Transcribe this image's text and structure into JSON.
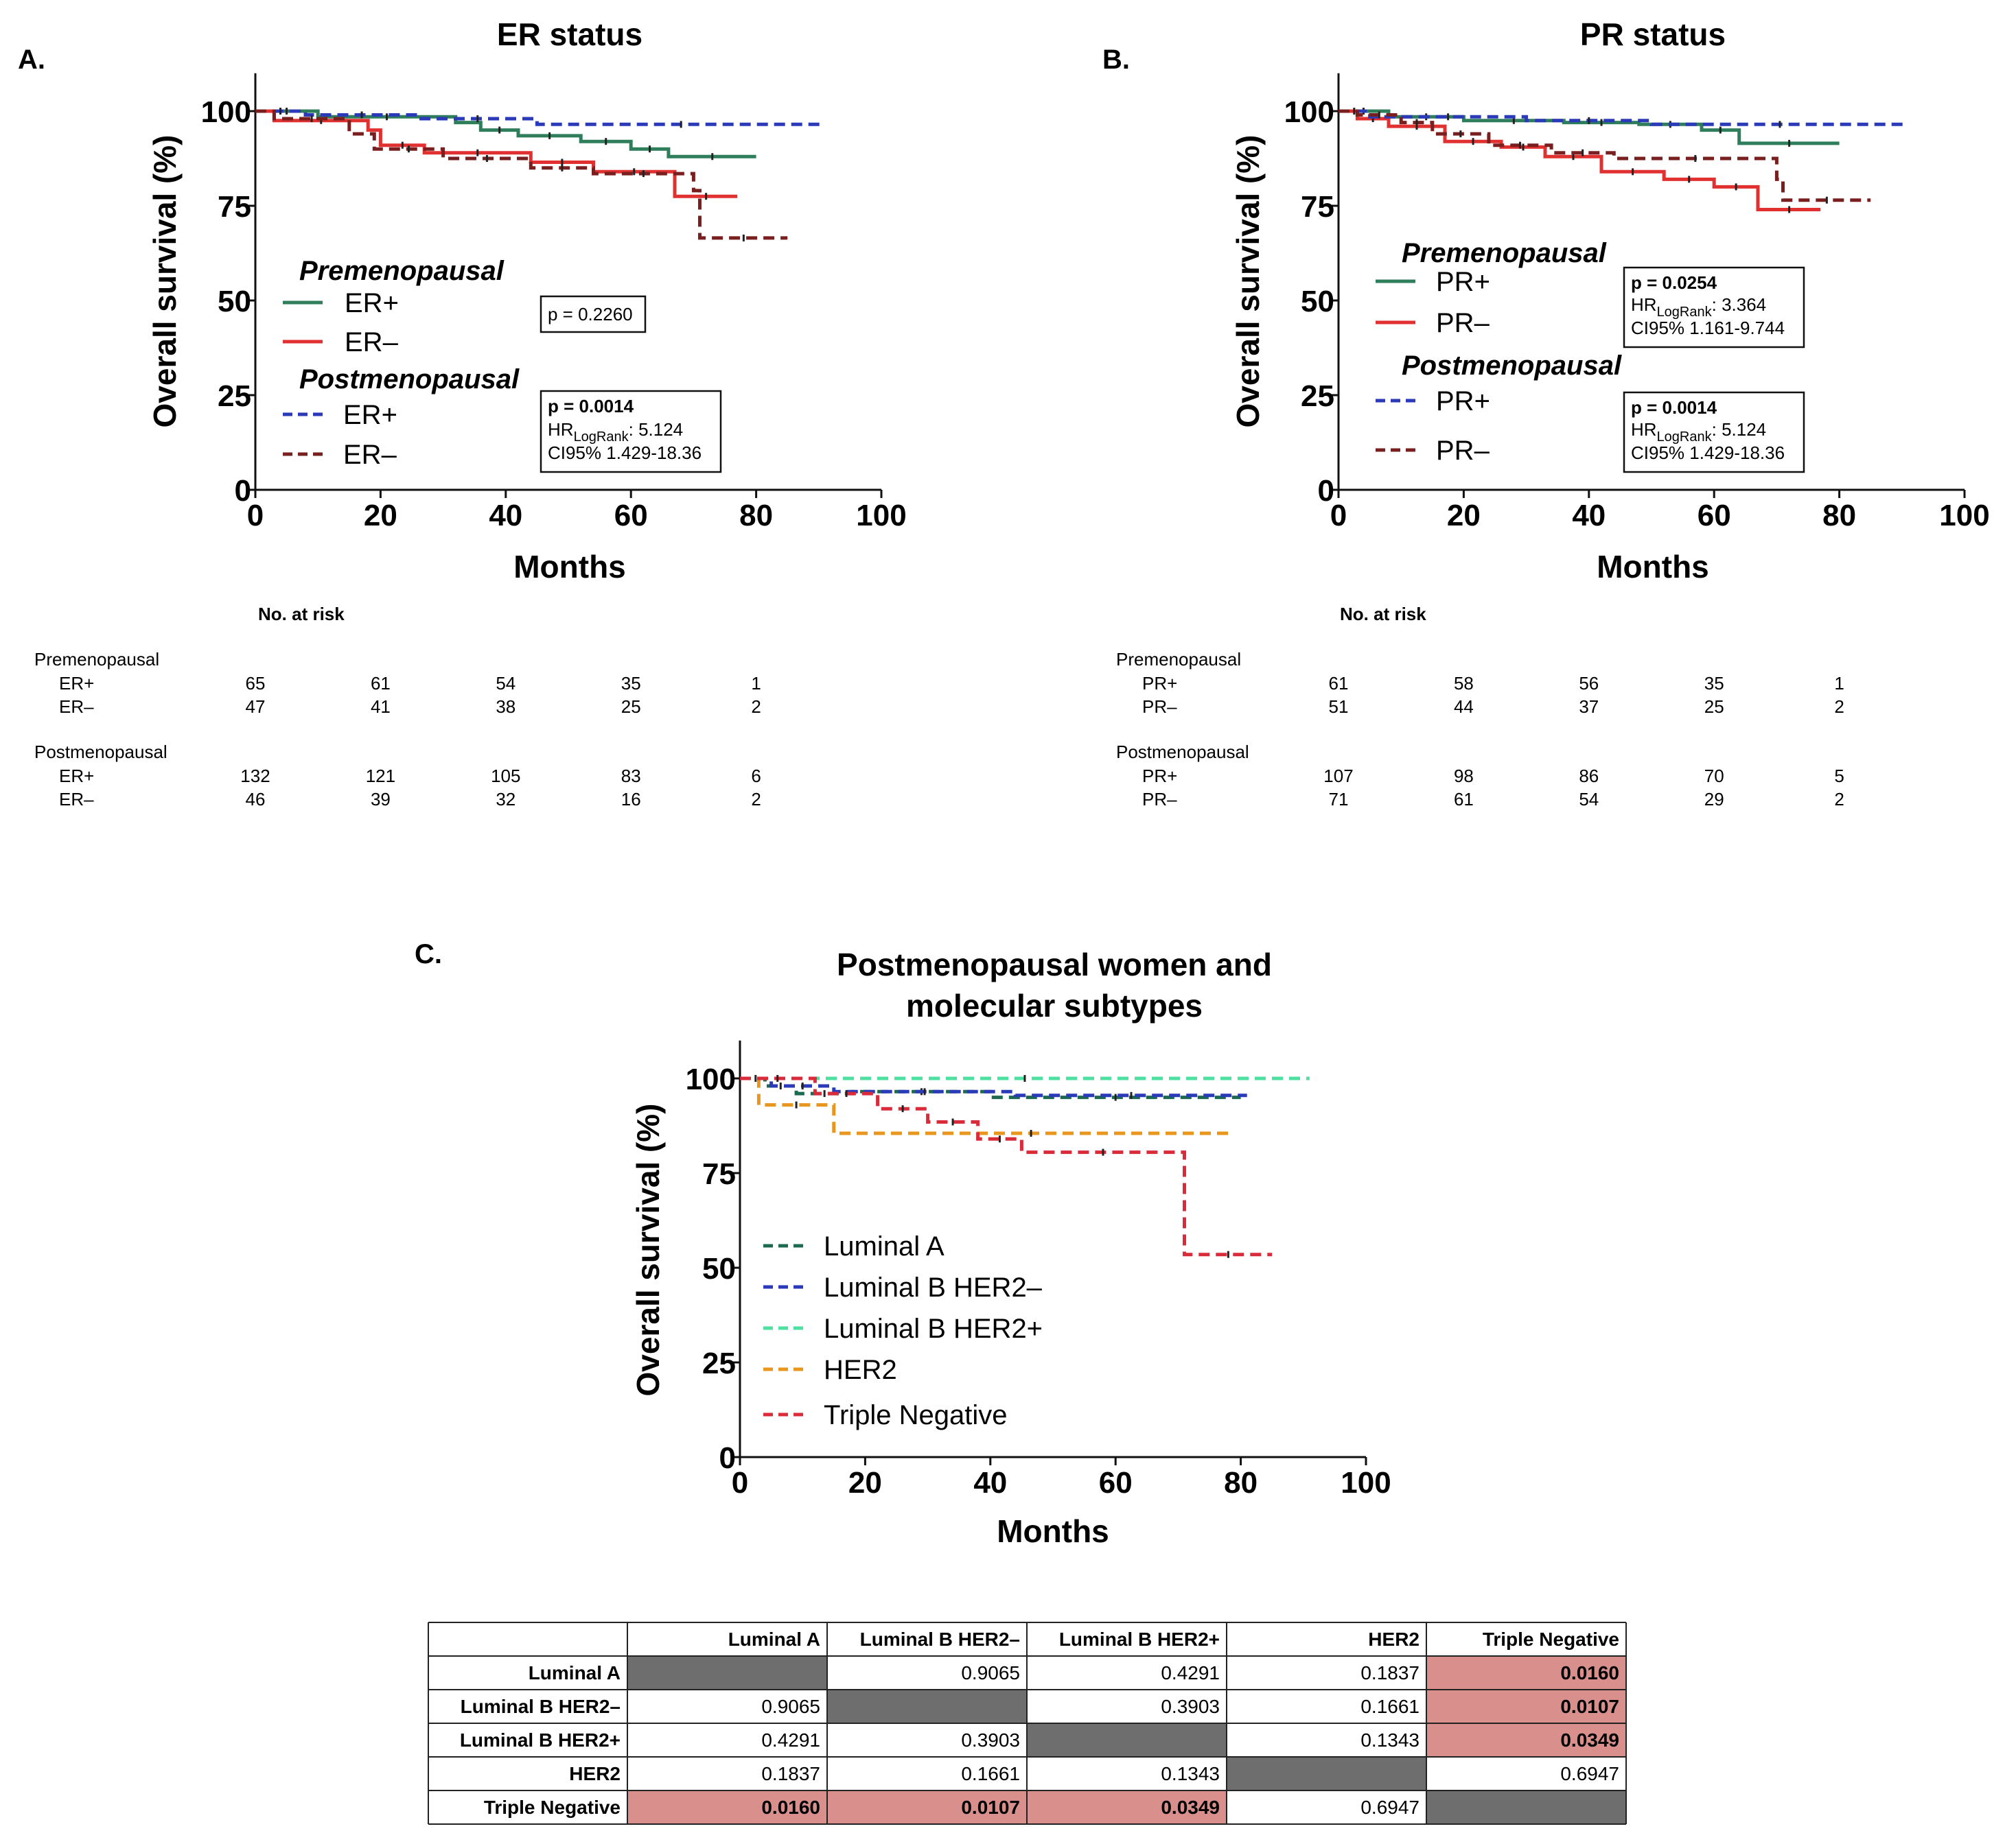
{
  "chart_data": [
    {
      "type": "line",
      "panel_label": "A.",
      "title": "ER status",
      "xlabel": "Months",
      "ylabel": "Overall survival (%)",
      "xlim": [
        0,
        100
      ],
      "ylim": [
        0,
        100
      ],
      "xticks": [
        "0",
        "20",
        "40",
        "60",
        "80",
        "100"
      ],
      "yticks": [
        "0",
        "25",
        "50",
        "75",
        "100"
      ],
      "legend": {
        "groups": [
          {
            "heading": "Premenopausal",
            "items": [
              "ER+",
              "ER–"
            ]
          },
          {
            "heading": "Postmenopausal",
            "items": [
              "ER+",
              "ER–"
            ]
          }
        ]
      },
      "series": [
        {
          "name": "ER+",
          "group": "Premenopausal",
          "color": "#2e7d5b",
          "dash": "solid",
          "x": [
            0,
            10,
            10,
            32,
            32,
            36,
            36,
            42,
            42,
            52,
            52,
            60,
            60,
            66,
            66,
            80
          ],
          "y": [
            100,
            100,
            98.5,
            98.5,
            97,
            97,
            95,
            95,
            93.5,
            93.5,
            92,
            92,
            90,
            90,
            88,
            88
          ]
        },
        {
          "name": "ER–",
          "group": "Premenopausal",
          "color": "#e03030",
          "dash": "solid",
          "x": [
            0,
            3,
            3,
            18,
            18,
            20,
            20,
            27,
            27,
            44,
            44,
            54,
            54,
            67,
            67,
            77
          ],
          "y": [
            100,
            100,
            97.5,
            97.5,
            95,
            95,
            91,
            91,
            89,
            89,
            86.5,
            86.5,
            84,
            84,
            77.5,
            77.5
          ]
        },
        {
          "name": "ER+",
          "group": "Postmenopausal",
          "color": "#2b3ab8",
          "dash": "dashed",
          "x": [
            0,
            8,
            8,
            26,
            26,
            45,
            45,
            91
          ],
          "y": [
            100,
            100,
            99,
            99,
            98,
            98,
            96.5,
            96.5
          ]
        },
        {
          "name": "ER–",
          "group": "Postmenopausal",
          "color": "#7a1f1f",
          "dash": "dashed",
          "x": [
            0,
            3,
            3,
            15,
            15,
            19,
            19,
            30,
            30,
            44,
            44,
            54,
            54,
            70,
            70,
            71,
            71,
            85
          ],
          "y": [
            100,
            100,
            98,
            98,
            94,
            94,
            90,
            90,
            87.5,
            87.5,
            85,
            85,
            83.5,
            83.5,
            79,
            79,
            66.5,
            66.5
          ]
        }
      ],
      "annotations": [
        {
          "p": "p = 0.2260"
        },
        {
          "p": "p = 0.0014",
          "hr_prefix": "HR",
          "hr_sub": "LogRank",
          "hr_value": ": 5.124",
          "ci": "CI95% 1.429-18.36"
        }
      ],
      "risk_table": {
        "title": "No. at risk",
        "groups": [
          {
            "heading": "Premenopausal",
            "rows": [
              {
                "label": "ER+",
                "values": [
                  "65",
                  "61",
                  "54",
                  "35",
                  "1"
                ]
              },
              {
                "label": "ER–",
                "values": [
                  "47",
                  "41",
                  "38",
                  "25",
                  "2"
                ]
              }
            ]
          },
          {
            "heading": "Postmenopausal",
            "rows": [
              {
                "label": "ER+",
                "values": [
                  "132",
                  "121",
                  "105",
                  "83",
                  "6"
                ]
              },
              {
                "label": "ER–",
                "values": [
                  "46",
                  "39",
                  "32",
                  "16",
                  "2"
                ]
              }
            ]
          }
        ]
      }
    },
    {
      "type": "line",
      "panel_label": "B.",
      "title": "PR status",
      "xlabel": "Months",
      "ylabel": "Overall survival (%)",
      "xlim": [
        0,
        100
      ],
      "ylim": [
        0,
        100
      ],
      "xticks": [
        "0",
        "20",
        "40",
        "60",
        "80",
        "100"
      ],
      "yticks": [
        "0",
        "25",
        "50",
        "75",
        "100"
      ],
      "legend": {
        "groups": [
          {
            "heading": "Premenopausal",
            "items": [
              "PR+",
              "PR–"
            ]
          },
          {
            "heading": "Postmenopausal",
            "items": [
              "PR+",
              "PR–"
            ]
          }
        ]
      },
      "series": [
        {
          "name": "PR+",
          "group": "Premenopausal",
          "color": "#2e7d5b",
          "dash": "solid",
          "x": [
            0,
            8,
            8,
            20,
            20,
            36,
            36,
            48,
            48,
            58,
            58,
            64,
            64,
            80
          ],
          "y": [
            100,
            100,
            98.5,
            98.5,
            97.5,
            97.5,
            97,
            97,
            96.5,
            96.5,
            95,
            95,
            91.5,
            91.5
          ]
        },
        {
          "name": "PR–",
          "group": "Premenopausal",
          "color": "#e03030",
          "dash": "solid",
          "x": [
            0,
            3,
            3,
            8,
            8,
            17,
            17,
            26,
            26,
            33,
            33,
            42,
            42,
            52,
            52,
            60,
            60,
            67,
            67,
            77
          ],
          "y": [
            100,
            100,
            98,
            98,
            96,
            96,
            92,
            92,
            90.5,
            90.5,
            88,
            88,
            84,
            84,
            82,
            82,
            80,
            80,
            74,
            74
          ]
        },
        {
          "name": "PR+",
          "group": "Postmenopausal",
          "color": "#2b3ab8",
          "dash": "dashed",
          "x": [
            0,
            5,
            5,
            30,
            30,
            50,
            50,
            91
          ],
          "y": [
            100,
            100,
            98.5,
            98.5,
            97.5,
            97.5,
            96.5,
            96.5
          ]
        },
        {
          "name": "PR–",
          "group": "Postmenopausal",
          "color": "#7a1f1f",
          "dash": "dashed",
          "x": [
            0,
            3,
            3,
            10,
            10,
            15,
            15,
            24,
            24,
            34,
            34,
            44,
            44,
            70,
            70,
            71,
            71,
            85
          ],
          "y": [
            100,
            100,
            99,
            99,
            97,
            97,
            94,
            94,
            91,
            91,
            89,
            89,
            87.5,
            87.5,
            82,
            82,
            76.5,
            76.5
          ]
        }
      ],
      "annotations": [
        {
          "p": "p = 0.0254",
          "hr_prefix": "HR",
          "hr_sub": "LogRank",
          "hr_value": ": 3.364",
          "ci": "CI95% 1.161-9.744"
        },
        {
          "p": "p = 0.0014",
          "hr_prefix": "HR",
          "hr_sub": "LogRank",
          "hr_value": ": 5.124",
          "ci": "CI95% 1.429-18.36"
        }
      ],
      "risk_table": {
        "title": "No. at risk",
        "groups": [
          {
            "heading": "Premenopausal",
            "rows": [
              {
                "label": "PR+",
                "values": [
                  "61",
                  "58",
                  "56",
                  "35",
                  "1"
                ]
              },
              {
                "label": "PR–",
                "values": [
                  "51",
                  "44",
                  "37",
                  "25",
                  "2"
                ]
              }
            ]
          },
          {
            "heading": "Postmenopausal",
            "rows": [
              {
                "label": "PR+",
                "values": [
                  "107",
                  "98",
                  "86",
                  "70",
                  "5"
                ]
              },
              {
                "label": "PR–",
                "values": [
                  "71",
                  "61",
                  "54",
                  "29",
                  "2"
                ]
              }
            ]
          }
        ]
      }
    },
    {
      "type": "line",
      "panel_label": "C.",
      "title": [
        "Postmenopausal women and",
        "molecular subtypes"
      ],
      "xlabel": "Months",
      "ylabel": "Overall survival (%)",
      "xlim": [
        0,
        100
      ],
      "ylim": [
        0,
        100
      ],
      "xticks": [
        "0",
        "20",
        "40",
        "60",
        "80",
        "100"
      ],
      "yticks": [
        "0",
        "25",
        "50",
        "75",
        "100"
      ],
      "legend": {
        "items": [
          "Luminal A",
          "Luminal B HER2–",
          "Luminal B HER2+",
          "HER2",
          "Triple Negative"
        ]
      },
      "series": [
        {
          "name": "Luminal A",
          "color": "#1d6b4f",
          "dash": "dashed",
          "x": [
            0,
            4,
            4,
            9,
            9,
            18,
            18,
            40,
            40,
            80
          ],
          "y": [
            100,
            100,
            98,
            98,
            96,
            96,
            96.5,
            96.5,
            95,
            95
          ]
        },
        {
          "name": "Luminal B HER2–",
          "color": "#2b3ab8",
          "dash": "dashed",
          "x": [
            0,
            5,
            5,
            15,
            15,
            44,
            44,
            81
          ],
          "y": [
            100,
            100,
            98,
            98,
            96.5,
            96.5,
            95.5,
            95.5
          ]
        },
        {
          "name": "Luminal B HER2+",
          "color": "#4ee0a0",
          "dash": "dashed",
          "x": [
            0,
            91
          ],
          "y": [
            100,
            100
          ]
        },
        {
          "name": "HER2",
          "color": "#e8961e",
          "dash": "dashed",
          "x": [
            0,
            3,
            3,
            15,
            15,
            78
          ],
          "y": [
            100,
            100,
            93,
            93,
            85.5,
            85.5
          ]
        },
        {
          "name": "Triple Negative",
          "color": "#d92b3a",
          "dash": "dashed",
          "x": [
            0,
            12,
            12,
            22,
            22,
            30,
            30,
            38,
            38,
            45,
            45,
            71,
            71,
            85
          ],
          "y": [
            100,
            100,
            96,
            96,
            92,
            92,
            88.5,
            88.5,
            84,
            84,
            80.5,
            80.5,
            53.5,
            53.5
          ]
        }
      ],
      "pvalue_table": {
        "columns": [
          "",
          "Luminal A",
          "Luminal B HER2–",
          "Luminal B HER2+",
          "HER2",
          "Triple Negative"
        ],
        "rows": [
          {
            "label": "Luminal A",
            "values": [
              "",
              "0.9065",
              "0.4291",
              "0.1837",
              "0.0160"
            ]
          },
          {
            "label": "Luminal B HER2–",
            "values": [
              "0.9065",
              "",
              "0.3903",
              "0.1661",
              "0.0107"
            ]
          },
          {
            "label": "Luminal B HER2+",
            "values": [
              "0.4291",
              "0.3903",
              "",
              "0.1343",
              "0.0349"
            ]
          },
          {
            "label": "HER2",
            "values": [
              "0.1837",
              "0.1661",
              "0.1343",
              "",
              "0.6947"
            ]
          },
          {
            "label": "Triple Negative",
            "values": [
              "0.0160",
              "0.0107",
              "0.0349",
              "0.6947",
              ""
            ]
          }
        ],
        "significant_color": "#d9908c",
        "diagonal_color": "#6e6e6e"
      }
    }
  ]
}
